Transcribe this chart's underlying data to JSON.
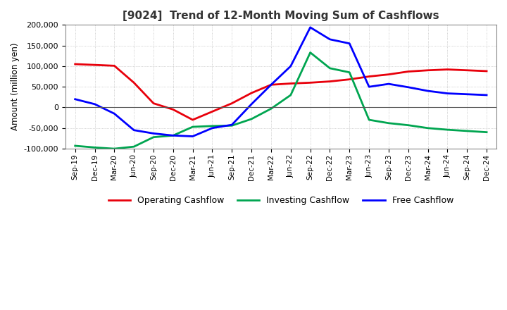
{
  "title": "[9024]  Trend of 12-Month Moving Sum of Cashflows",
  "ylabel": "Amount (million yen)",
  "x_labels": [
    "Sep-19",
    "Dec-19",
    "Mar-20",
    "Jun-20",
    "Sep-20",
    "Dec-20",
    "Mar-21",
    "Jun-21",
    "Sep-21",
    "Dec-21",
    "Mar-22",
    "Jun-22",
    "Sep-22",
    "Dec-22",
    "Mar-23",
    "Jun-23",
    "Sep-23",
    "Dec-23",
    "Mar-24",
    "Jun-24",
    "Sep-24",
    "Dec-24"
  ],
  "operating": [
    105000,
    103000,
    101000,
    60000,
    10000,
    -5000,
    -30000,
    -10000,
    10000,
    35000,
    55000,
    58000,
    60000,
    63000,
    68000,
    75000,
    80000,
    87000,
    90000,
    92000,
    90000,
    88000
  ],
  "investing": [
    -93000,
    -97000,
    -100000,
    -95000,
    -72000,
    -68000,
    -47000,
    -45000,
    -44000,
    -28000,
    -3000,
    30000,
    133000,
    95000,
    85000,
    -30000,
    -38000,
    -43000,
    -50000,
    -54000,
    -57000,
    -60000
  ],
  "free": [
    20000,
    8000,
    -15000,
    -55000,
    -63000,
    -68000,
    -70000,
    -50000,
    -42000,
    8000,
    55000,
    100000,
    194000,
    165000,
    155000,
    50000,
    57000,
    49000,
    40000,
    34000,
    32000,
    30000
  ],
  "operating_color": "#e8000b",
  "investing_color": "#00a550",
  "free_color": "#0000ff",
  "ylim": [
    -100000,
    200000
  ],
  "yticks": [
    -100000,
    -50000,
    0,
    50000,
    100000,
    150000,
    200000
  ],
  "background_color": "#ffffff",
  "grid_color": "#b0b0b0",
  "title_color": "#333333",
  "legend_labels": [
    "Operating Cashflow",
    "Investing Cashflow",
    "Free Cashflow"
  ]
}
